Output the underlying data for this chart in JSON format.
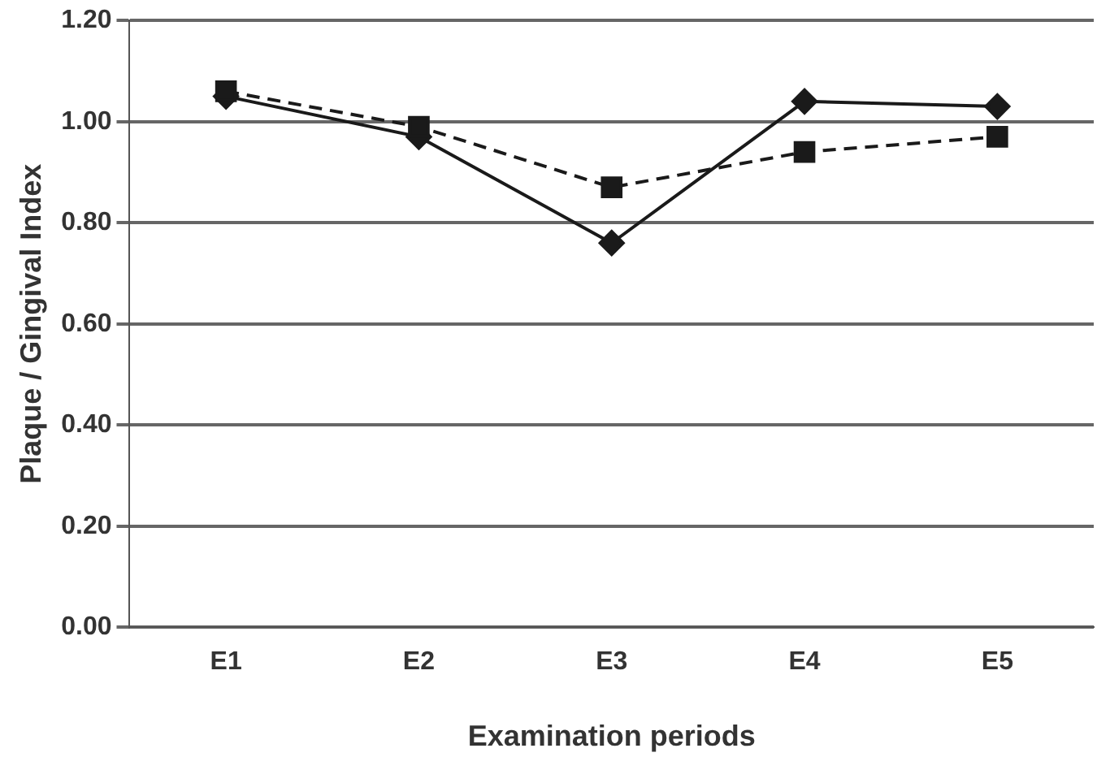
{
  "chart_data": {
    "type": "line",
    "xlabel": "Examination periods",
    "ylabel": "Plaque / Gingival Index",
    "categories": [
      "E1",
      "E2",
      "E3",
      "E4",
      "E5"
    ],
    "series": [
      {
        "color": "#1a1a1a",
        "marker": "diamond",
        "line_style": "solid",
        "values": [
          1.05,
          0.97,
          0.76,
          1.04,
          1.03
        ]
      },
      {
        "color": "#1a1a1a",
        "marker": "square",
        "line_style": "dashed",
        "values": [
          1.06,
          0.99,
          0.87,
          0.94,
          0.97
        ]
      }
    ],
    "ylim": [
      0,
      1.2
    ],
    "yticks": [
      {
        "value": 0,
        "label": "0.00"
      },
      {
        "value": 0.2,
        "label": "0.20"
      },
      {
        "value": 0.4,
        "label": "0.40"
      },
      {
        "value": 0.6,
        "label": "0.60"
      },
      {
        "value": 0.8,
        "label": "0.80"
      },
      {
        "value": 1,
        "label": "1.00"
      },
      {
        "value": 1.2,
        "label": "1.20"
      }
    ],
    "grid": "y",
    "legend": false
  }
}
